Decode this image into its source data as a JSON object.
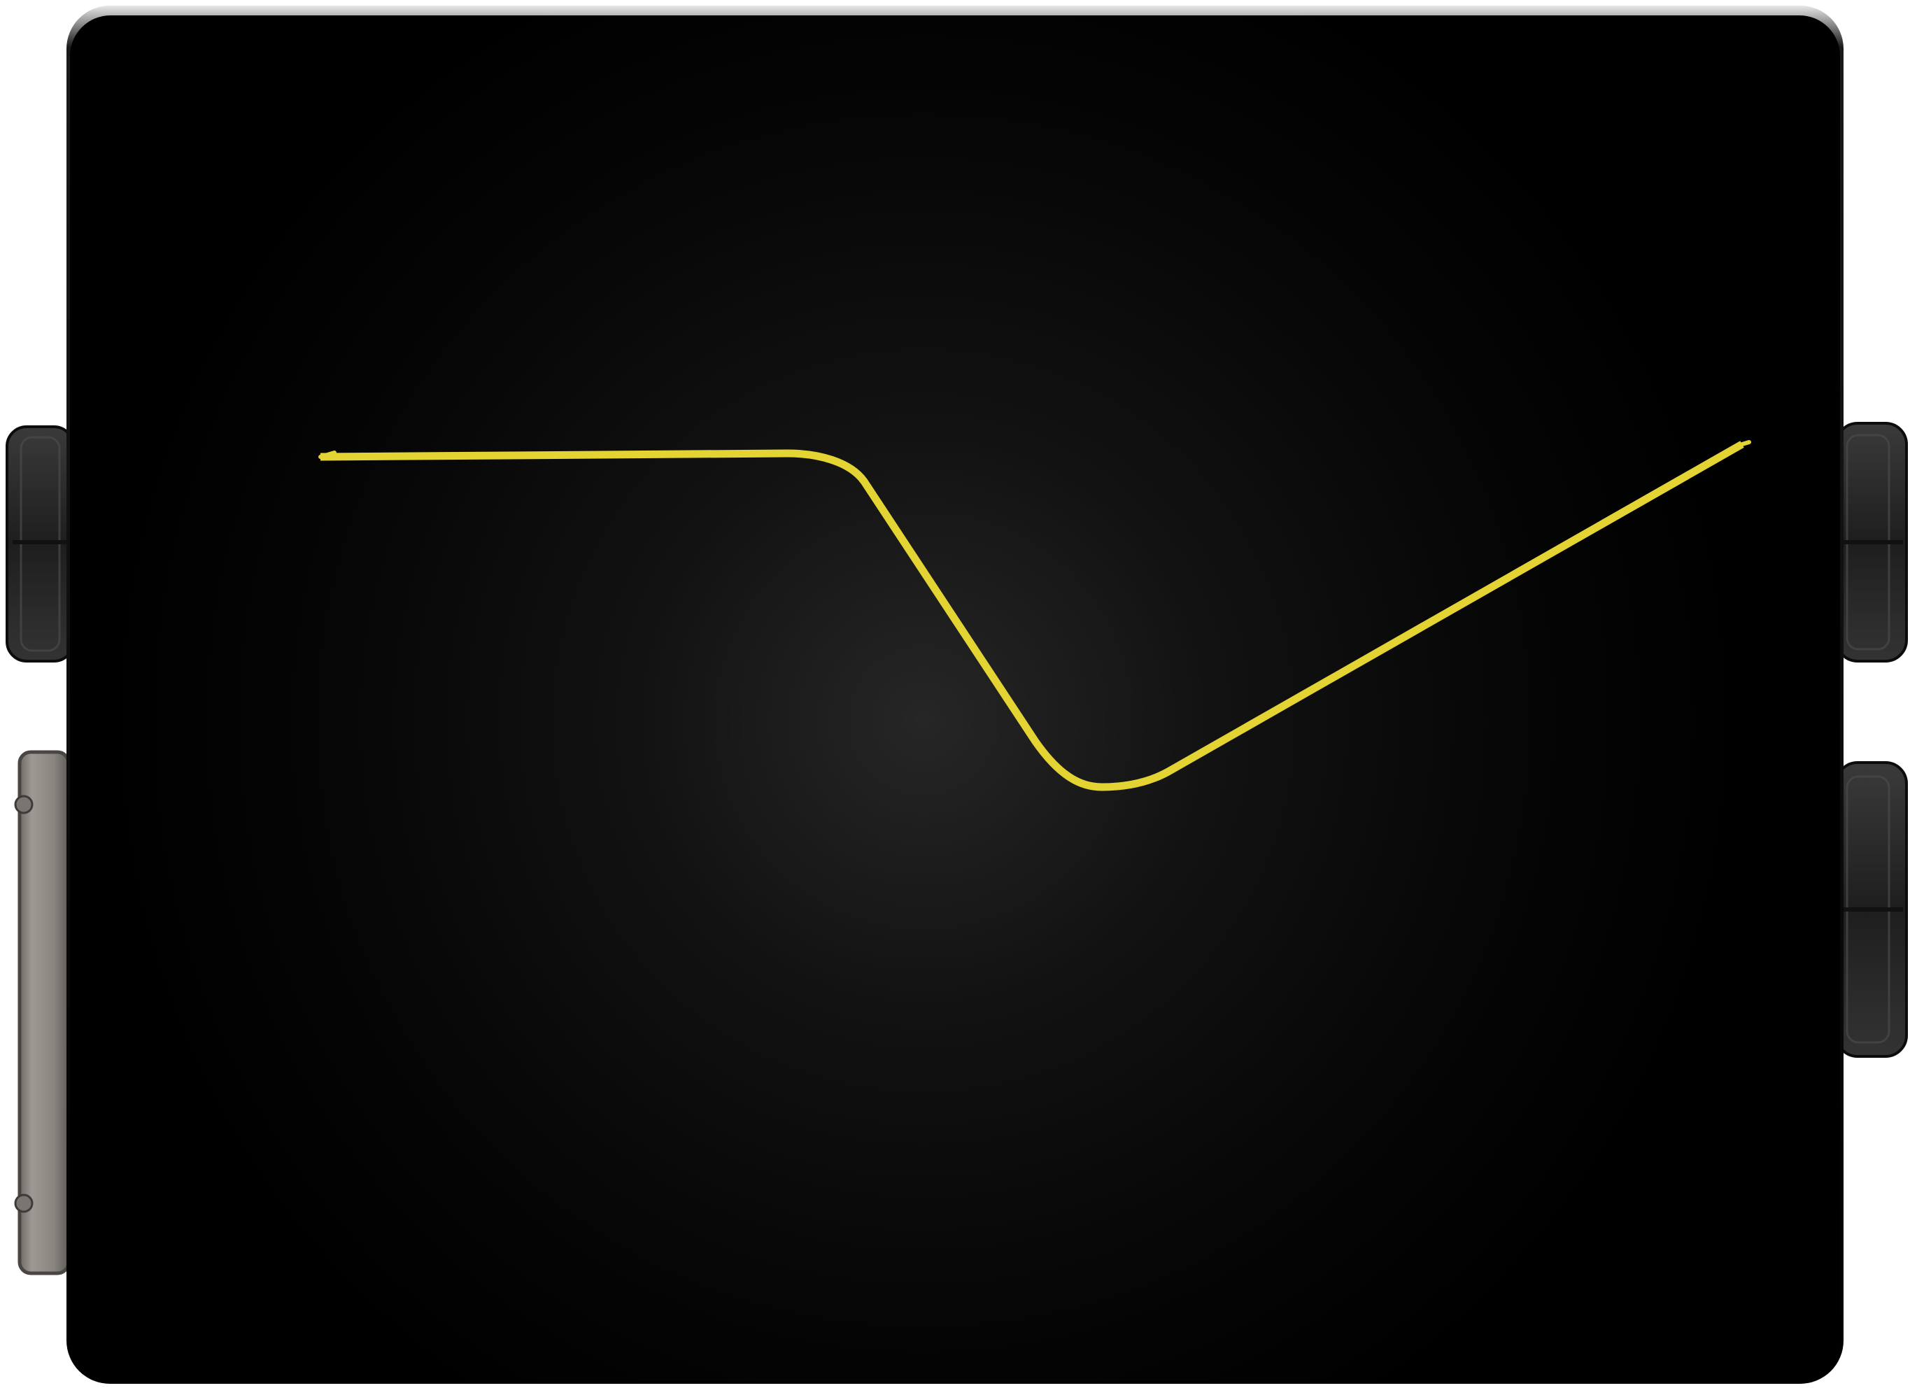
{
  "device": {
    "type": "effects-pedal-enclosure",
    "finish": "black",
    "trace_color": "#e3d433",
    "jack_color": "#262626",
    "plate_color": "#8f8a84"
  }
}
